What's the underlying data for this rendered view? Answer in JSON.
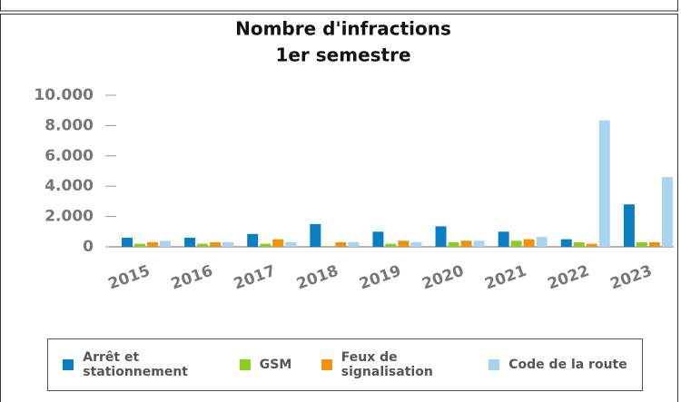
{
  "chart_data": {
    "type": "bar",
    "title": "Nombre d'infractions",
    "subtitle": "1er semestre",
    "categories": [
      "2015",
      "2016",
      "2017",
      "2018",
      "2019",
      "2020",
      "2021",
      "2022",
      "2023"
    ],
    "series": [
      {
        "name": "Arrêt et stationnement",
        "color": "#0a7ec2",
        "values": [
          600,
          600,
          850,
          1500,
          1000,
          1350,
          1000,
          500,
          2800
        ]
      },
      {
        "name": "GSM",
        "color": "#8ccf1a",
        "values": [
          200,
          200,
          200,
          50,
          200,
          300,
          400,
          300,
          300
        ]
      },
      {
        "name": "Feux de signalisation",
        "color": "#f0920a",
        "values": [
          300,
          300,
          500,
          300,
          400,
          400,
          500,
          200,
          300
        ]
      },
      {
        "name": "Code de la route",
        "color": "#a8d4ef",
        "values": [
          400,
          300,
          300,
          300,
          300,
          400,
          650,
          8350,
          4600
        ]
      }
    ],
    "ylim": [
      0,
      10000
    ],
    "yticks": [
      0,
      {
        "value": 2000,
        "label": "2.000"
      },
      {
        "value": 4000,
        "label": "4.000"
      },
      {
        "value": 6000,
        "label": "6.000"
      },
      {
        "value": 8000,
        "label": "8.000"
      },
      {
        "value": 10000,
        "label": "10.000"
      }
    ],
    "grid": true,
    "legend": "bottom"
  }
}
